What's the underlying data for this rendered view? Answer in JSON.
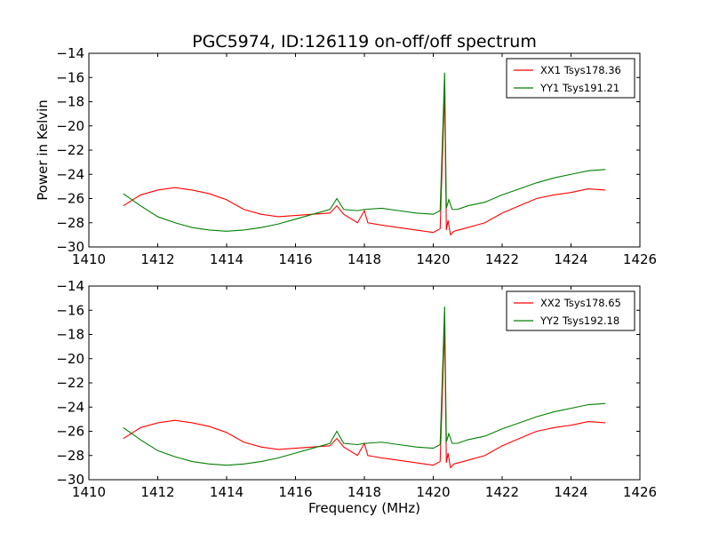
{
  "figure": {
    "title": "PGC5974, ID:126119 on-off/off spectrum",
    "xlabel": "Frequency (MHz)",
    "ylabel": "Power in Kelvin"
  },
  "chart_data": [
    {
      "type": "line",
      "xlim": [
        1410,
        1426
      ],
      "ylim": [
        -30,
        -14
      ],
      "xticks": [
        "1410",
        "1412",
        "1414",
        "1416",
        "1418",
        "1420",
        "1422",
        "1424",
        "1426"
      ],
      "yticks": [
        "−30",
        "−28",
        "−26",
        "−24",
        "−22",
        "−20",
        "−18",
        "−16",
        "−14"
      ],
      "legend_position": "top-right",
      "series": [
        {
          "name": "XX1 Tsys178.36",
          "color": "#ff0000",
          "x": [
            1411.0,
            1411.5,
            1412.0,
            1412.5,
            1413.0,
            1413.5,
            1414.0,
            1414.5,
            1415.0,
            1415.5,
            1416.0,
            1416.5,
            1417.0,
            1417.2,
            1417.4,
            1417.8,
            1418.0,
            1418.1,
            1418.5,
            1419.0,
            1419.5,
            1420.0,
            1420.2,
            1420.33,
            1420.38,
            1420.43,
            1420.5,
            1420.6,
            1421.0,
            1421.5,
            1422.0,
            1422.5,
            1423.0,
            1423.5,
            1424.0,
            1424.5,
            1425.0
          ],
          "y": [
            -26.6,
            -25.7,
            -25.3,
            -25.1,
            -25.3,
            -25.6,
            -26.1,
            -26.9,
            -27.3,
            -27.5,
            -27.4,
            -27.3,
            -27.2,
            -26.6,
            -27.3,
            -28.0,
            -27.0,
            -28.0,
            -28.2,
            -28.4,
            -28.6,
            -28.8,
            -28.5,
            -17.0,
            -28.6,
            -27.8,
            -29.0,
            -28.7,
            -28.4,
            -28.0,
            -27.2,
            -26.6,
            -26.0,
            -25.7,
            -25.5,
            -25.2,
            -25.3
          ]
        },
        {
          "name": "YY1 Tsys191.21",
          "color": "#008000",
          "x": [
            1411.0,
            1411.5,
            1412.0,
            1412.5,
            1413.0,
            1413.5,
            1414.0,
            1414.5,
            1415.0,
            1415.5,
            1416.0,
            1416.5,
            1417.0,
            1417.2,
            1417.4,
            1417.8,
            1418.0,
            1418.5,
            1419.0,
            1419.5,
            1420.0,
            1420.2,
            1420.33,
            1420.38,
            1420.45,
            1420.55,
            1420.7,
            1421.0,
            1421.5,
            1422.0,
            1422.5,
            1423.0,
            1423.5,
            1424.0,
            1424.5,
            1425.0
          ],
          "y": [
            -25.6,
            -26.6,
            -27.5,
            -28.0,
            -28.4,
            -28.6,
            -28.7,
            -28.6,
            -28.4,
            -28.1,
            -27.7,
            -27.3,
            -26.9,
            -26.0,
            -26.9,
            -27.0,
            -26.9,
            -26.8,
            -27.0,
            -27.2,
            -27.3,
            -27.0,
            -15.6,
            -26.8,
            -26.1,
            -26.9,
            -26.9,
            -26.6,
            -26.3,
            -25.7,
            -25.2,
            -24.7,
            -24.3,
            -24.0,
            -23.7,
            -23.6
          ]
        }
      ]
    },
    {
      "type": "line",
      "xlim": [
        1410,
        1426
      ],
      "ylim": [
        -30,
        -14
      ],
      "xticks": [
        "1410",
        "1412",
        "1414",
        "1416",
        "1418",
        "1420",
        "1422",
        "1424",
        "1426"
      ],
      "yticks": [
        "−30",
        "−28",
        "−26",
        "−24",
        "−22",
        "−20",
        "−18",
        "−16",
        "−14"
      ],
      "legend_position": "top-right",
      "series": [
        {
          "name": "XX2 Tsys178.65",
          "color": "#ff0000",
          "x": [
            1411.0,
            1411.5,
            1412.0,
            1412.5,
            1413.0,
            1413.5,
            1414.0,
            1414.5,
            1415.0,
            1415.5,
            1416.0,
            1416.5,
            1417.0,
            1417.2,
            1417.4,
            1417.8,
            1418.0,
            1418.1,
            1418.5,
            1419.0,
            1419.5,
            1420.0,
            1420.2,
            1420.33,
            1420.38,
            1420.43,
            1420.5,
            1420.6,
            1421.0,
            1421.5,
            1422.0,
            1422.5,
            1423.0,
            1423.5,
            1424.0,
            1424.5,
            1425.0
          ],
          "y": [
            -26.6,
            -25.7,
            -25.3,
            -25.1,
            -25.3,
            -25.6,
            -26.1,
            -26.9,
            -27.3,
            -27.5,
            -27.4,
            -27.3,
            -27.2,
            -26.6,
            -27.3,
            -28.0,
            -27.0,
            -28.0,
            -28.2,
            -28.4,
            -28.6,
            -28.8,
            -28.5,
            -17.2,
            -28.6,
            -27.8,
            -29.0,
            -28.7,
            -28.4,
            -28.0,
            -27.2,
            -26.6,
            -26.0,
            -25.7,
            -25.5,
            -25.2,
            -25.3
          ]
        },
        {
          "name": "YY2 Tsys192.18",
          "color": "#008000",
          "x": [
            1411.0,
            1411.5,
            1412.0,
            1412.5,
            1413.0,
            1413.5,
            1414.0,
            1414.5,
            1415.0,
            1415.5,
            1416.0,
            1416.5,
            1417.0,
            1417.2,
            1417.4,
            1417.8,
            1418.0,
            1418.5,
            1419.0,
            1419.5,
            1420.0,
            1420.2,
            1420.33,
            1420.38,
            1420.45,
            1420.55,
            1420.7,
            1421.0,
            1421.5,
            1422.0,
            1422.5,
            1423.0,
            1423.5,
            1424.0,
            1424.5,
            1425.0
          ],
          "y": [
            -25.7,
            -26.7,
            -27.6,
            -28.1,
            -28.5,
            -28.7,
            -28.8,
            -28.7,
            -28.5,
            -28.2,
            -27.8,
            -27.4,
            -27.0,
            -26.0,
            -27.0,
            -27.1,
            -27.0,
            -26.9,
            -27.1,
            -27.3,
            -27.4,
            -27.1,
            -15.7,
            -26.9,
            -26.2,
            -27.0,
            -27.0,
            -26.7,
            -26.4,
            -25.8,
            -25.3,
            -24.8,
            -24.4,
            -24.1,
            -23.8,
            -23.7
          ]
        }
      ]
    }
  ]
}
